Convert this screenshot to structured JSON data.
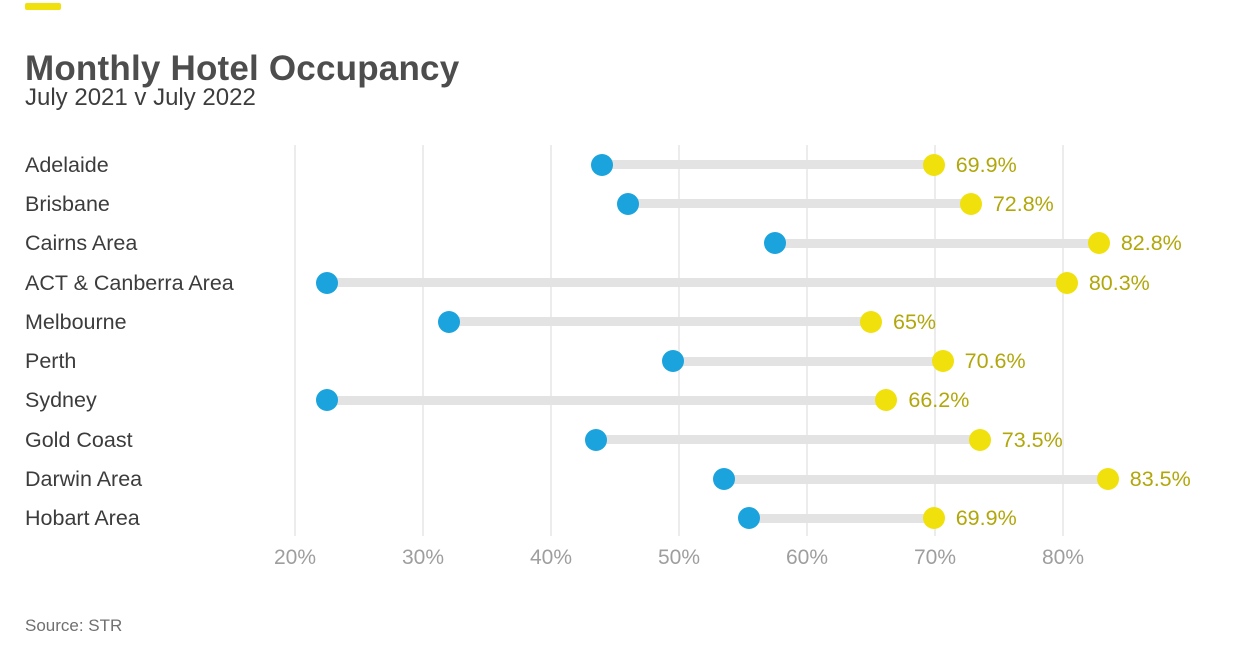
{
  "header": {
    "title": "Monthly Hotel Occupancy",
    "subtitle": "July 2021 v July 2022"
  },
  "footer": {
    "source": "Source: STR"
  },
  "chart_data": {
    "type": "dumbbell",
    "title": "Monthly Hotel Occupancy",
    "subtitle": "July 2021 v July 2022",
    "categories": [
      "Adelaide",
      "Brisbane",
      "Cairns Area",
      "ACT & Canberra Area",
      "Melbourne",
      "Perth",
      "Sydney",
      "Gold Coast",
      "Darwin Area",
      "Hobart Area"
    ],
    "series": [
      {
        "name": "July 2021",
        "color": "#1ba3dd",
        "values": [
          44,
          46,
          57.5,
          22.5,
          32,
          49.5,
          22.5,
          43.5,
          53.5,
          55.5
        ]
      },
      {
        "name": "July 2022",
        "color": "#f0e10c",
        "values": [
          69.9,
          72.8,
          82.8,
          80.3,
          65,
          70.6,
          66.2,
          73.5,
          83.5,
          69.9
        ]
      }
    ],
    "value_labels": [
      "69.9%",
      "72.8%",
      "82.8%",
      "80.3%",
      "65%",
      "70.6%",
      "66.2%",
      "73.5%",
      "83.5%",
      "69.9%"
    ],
    "value_label_color": "#b1a70b",
    "connector_color": "#e3e3e3",
    "x_ticks": [
      20,
      30,
      40,
      50,
      60,
      70,
      80
    ],
    "x_tick_labels": [
      "20%",
      "30%",
      "40%",
      "50%",
      "60%",
      "70%",
      "80%"
    ],
    "xlim": [
      20,
      80
    ],
    "grid": "vertical",
    "legend_position": "none"
  }
}
